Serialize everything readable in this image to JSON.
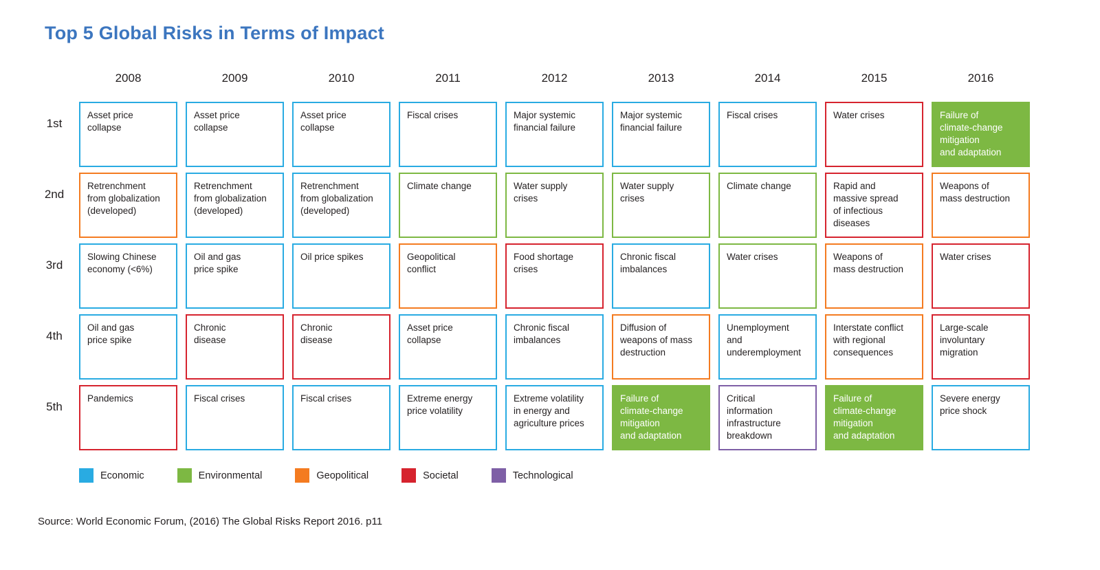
{
  "title": "Top 5 Global Risks in Terms of Impact",
  "source": "Source: World Economic Forum, (2016) The Global Risks Report 2016. p11",
  "colors": {
    "economic": "#29ABE2",
    "environmental": "#7DB843",
    "geopolitical": "#F47B20",
    "societal": "#D6232E",
    "technological": "#7E5FA6",
    "title-accent": "#3C76BF"
  },
  "legend": [
    {
      "label": "Economic",
      "category": "economic"
    },
    {
      "label": "Environmental",
      "category": "environmental"
    },
    {
      "label": "Geopolitical",
      "category": "geopolitical"
    },
    {
      "label": "Societal",
      "category": "societal"
    },
    {
      "label": "Technological",
      "category": "technological"
    }
  ],
  "chart_data": {
    "type": "table",
    "title": "Top 5 Global Risks in Terms of Impact",
    "columns": [
      "2008",
      "2009",
      "2010",
      "2011",
      "2012",
      "2013",
      "2014",
      "2015",
      "2016"
    ],
    "row_labels": [
      "1st",
      "2nd",
      "3rd",
      "4th",
      "5th"
    ],
    "legend_categories": [
      "Economic",
      "Environmental",
      "Geopolitical",
      "Societal",
      "Technological"
    ],
    "rows": [
      {
        "rank": "1st",
        "cells": [
          {
            "text": "Asset price\ncollapse",
            "category": "economic",
            "filled": false
          },
          {
            "text": "Asset price\ncollapse",
            "category": "economic",
            "filled": false
          },
          {
            "text": "Asset price\ncollapse",
            "category": "economic",
            "filled": false
          },
          {
            "text": "Fiscal crises",
            "category": "economic",
            "filled": false
          },
          {
            "text": "Major systemic\nfinancial failure",
            "category": "economic",
            "filled": false
          },
          {
            "text": "Major systemic\nfinancial failure",
            "category": "economic",
            "filled": false
          },
          {
            "text": "Fiscal crises",
            "category": "economic",
            "filled": false
          },
          {
            "text": "Water crises",
            "category": "societal",
            "filled": false
          },
          {
            "text": "Failure of\nclimate-change\nmitigation\nand adaptation",
            "category": "environmental",
            "filled": true
          }
        ]
      },
      {
        "rank": "2nd",
        "cells": [
          {
            "text": "Retrenchment\nfrom globalization\n(developed)",
            "category": "geopolitical",
            "filled": false
          },
          {
            "text": "Retrenchment\nfrom globalization\n(developed)",
            "category": "economic",
            "filled": false
          },
          {
            "text": "Retrenchment\nfrom globalization\n(developed)",
            "category": "economic",
            "filled": false
          },
          {
            "text": "Climate change",
            "category": "environmental",
            "filled": false
          },
          {
            "text": "Water supply\ncrises",
            "category": "environmental",
            "filled": false
          },
          {
            "text": "Water supply\ncrises",
            "category": "environmental",
            "filled": false
          },
          {
            "text": "Climate change",
            "category": "environmental",
            "filled": false
          },
          {
            "text": "Rapid and\nmassive spread\nof infectious\ndiseases",
            "category": "societal",
            "filled": false
          },
          {
            "text": "Weapons of\nmass destruction",
            "category": "geopolitical",
            "filled": false
          }
        ]
      },
      {
        "rank": "3rd",
        "cells": [
          {
            "text": "Slowing Chinese\neconomy (<6%)",
            "category": "economic",
            "filled": false
          },
          {
            "text": "Oil and gas\nprice spike",
            "category": "economic",
            "filled": false
          },
          {
            "text": "Oil price spikes",
            "category": "economic",
            "filled": false
          },
          {
            "text": "Geopolitical\nconflict",
            "category": "geopolitical",
            "filled": false
          },
          {
            "text": "Food shortage\ncrises",
            "category": "societal",
            "filled": false
          },
          {
            "text": "Chronic fiscal\nimbalances",
            "category": "economic",
            "filled": false
          },
          {
            "text": "Water crises",
            "category": "environmental",
            "filled": false
          },
          {
            "text": "Weapons of\nmass destruction",
            "category": "geopolitical",
            "filled": false
          },
          {
            "text": "Water crises",
            "category": "societal",
            "filled": false
          }
        ]
      },
      {
        "rank": "4th",
        "cells": [
          {
            "text": "Oil and gas\nprice spike",
            "category": "economic",
            "filled": false
          },
          {
            "text": "Chronic\ndisease",
            "category": "societal",
            "filled": false
          },
          {
            "text": "Chronic\ndisease",
            "category": "societal",
            "filled": false
          },
          {
            "text": "Asset price\ncollapse",
            "category": "economic",
            "filled": false
          },
          {
            "text": "Chronic fiscal\nimbalances",
            "category": "economic",
            "filled": false
          },
          {
            "text": "Diffusion of\nweapons of mass\ndestruction",
            "category": "geopolitical",
            "filled": false
          },
          {
            "text": "Unemployment\nand\nunderemployment",
            "category": "economic",
            "filled": false
          },
          {
            "text": "Interstate conflict\nwith regional\nconsequences",
            "category": "geopolitical",
            "filled": false
          },
          {
            "text": "Large-scale\ninvoluntary\nmigration",
            "category": "societal",
            "filled": false
          }
        ]
      },
      {
        "rank": "5th",
        "cells": [
          {
            "text": "Pandemics",
            "category": "societal",
            "filled": false
          },
          {
            "text": "Fiscal crises",
            "category": "economic",
            "filled": false
          },
          {
            "text": "Fiscal crises",
            "category": "economic",
            "filled": false
          },
          {
            "text": "Extreme energy\nprice volatility",
            "category": "economic",
            "filled": false
          },
          {
            "text": "Extreme volatility\nin energy and\nagriculture prices",
            "category": "economic",
            "filled": false
          },
          {
            "text": "Failure of\nclimate-change\nmitigation\nand adaptation",
            "category": "environmental",
            "filled": true
          },
          {
            "text": "Critical\ninformation\ninfrastructure\nbreakdown",
            "category": "technological",
            "filled": false
          },
          {
            "text": "Failure of\nclimate-change\nmitigation\nand adaptation",
            "category": "environmental",
            "filled": true
          },
          {
            "text": "Severe energy\nprice shock",
            "category": "economic",
            "filled": false
          }
        ]
      }
    ]
  }
}
